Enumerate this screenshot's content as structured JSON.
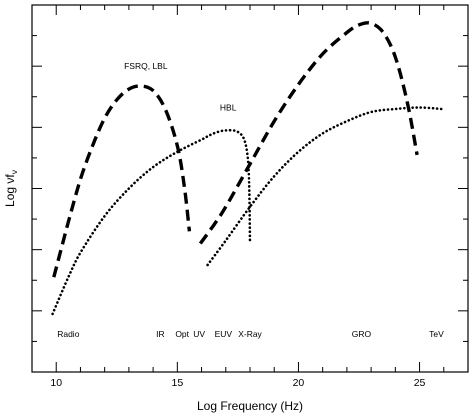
{
  "chart_data": {
    "type": "line",
    "title": "",
    "xlabel": "Log Frequency (Hz)",
    "ylabel": "Log νf",
    "ylabel_subscript": "ν",
    "xlim": [
      9,
      27
    ],
    "ylim": [
      0,
      12
    ],
    "x_ticks": [
      10,
      15,
      20,
      25
    ],
    "y_ticks_unlabeled": true,
    "grid": false,
    "band_labels": [
      {
        "text": "Radio",
        "x": 10.5
      },
      {
        "text": "IR",
        "x": 14.3
      },
      {
        "text": "Opt",
        "x": 15.2
      },
      {
        "text": "UV",
        "x": 15.9
      },
      {
        "text": "EUV",
        "x": 16.9
      },
      {
        "text": "X-Ray",
        "x": 18.0
      },
      {
        "text": "GRO",
        "x": 22.6
      },
      {
        "text": "TeV",
        "x": 25.7
      }
    ],
    "series": [
      {
        "name": "FSRQ, LBL",
        "style": "dashed",
        "segments": [
          [
            [
              9.9,
              3.1
            ],
            [
              10.5,
              4.9
            ],
            [
              11.0,
              6.3
            ],
            [
              11.5,
              7.4
            ],
            [
              12.0,
              8.3
            ],
            [
              12.5,
              8.9
            ],
            [
              13.0,
              9.25
            ],
            [
              13.5,
              9.35
            ],
            [
              14.0,
              9.2
            ],
            [
              14.5,
              8.6
            ],
            [
              15.0,
              7.4
            ],
            [
              15.3,
              6.0
            ],
            [
              15.5,
              4.6
            ]
          ],
          [
            [
              15.95,
              4.2
            ],
            [
              16.5,
              4.8
            ],
            [
              17.0,
              5.4
            ],
            [
              18.0,
              6.8
            ],
            [
              19.0,
              8.2
            ],
            [
              20.0,
              9.4
            ],
            [
              21.0,
              10.4
            ],
            [
              22.0,
              11.1
            ],
            [
              22.5,
              11.35
            ],
            [
              23.0,
              11.4
            ],
            [
              23.5,
              11.1
            ],
            [
              24.0,
              10.3
            ],
            [
              24.5,
              8.8
            ],
            [
              24.9,
              7.1
            ]
          ]
        ]
      },
      {
        "name": "HBL",
        "style": "dotted",
        "segments": [
          [
            [
              9.85,
              1.9
            ],
            [
              10.5,
              3.1
            ],
            [
              11.0,
              3.9
            ],
            [
              12.0,
              5.1
            ],
            [
              13.0,
              6.0
            ],
            [
              14.0,
              6.7
            ],
            [
              15.0,
              7.2
            ],
            [
              16.0,
              7.6
            ],
            [
              16.5,
              7.8
            ],
            [
              17.0,
              7.9
            ],
            [
              17.5,
              7.85
            ],
            [
              17.8,
              7.5
            ],
            [
              17.95,
              6.5
            ],
            [
              18.0,
              4.2
            ]
          ],
          [
            [
              16.25,
              3.5
            ],
            [
              17.0,
              4.3
            ],
            [
              18.0,
              5.4
            ],
            [
              19.0,
              6.4
            ],
            [
              20.0,
              7.2
            ],
            [
              21.0,
              7.8
            ],
            [
              22.0,
              8.2
            ],
            [
              23.0,
              8.5
            ],
            [
              24.0,
              8.6
            ],
            [
              25.0,
              8.65
            ],
            [
              25.9,
              8.6
            ]
          ]
        ]
      }
    ],
    "curve_labels": [
      {
        "text": "FSRQ, LBL",
        "x": 13.7,
        "y": 9.9
      },
      {
        "text": "HBL",
        "x": 17.1,
        "y": 8.55
      }
    ]
  }
}
